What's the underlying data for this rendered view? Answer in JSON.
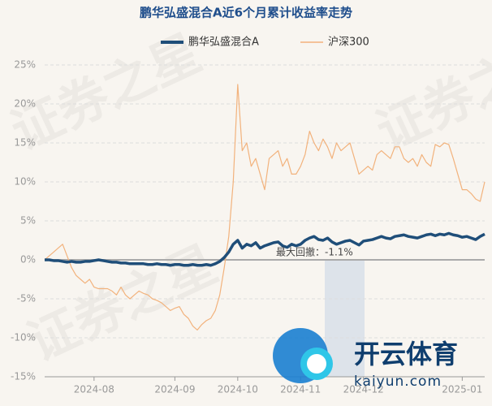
{
  "chart_data": {
    "type": "line",
    "title": "鹏华弘盛混合A近6个月累计收益率走势",
    "watermark": "证券之星",
    "logo": {
      "name": "开云体育",
      "url": "kaiyun.com"
    },
    "annotation": "最大回撤：-1.1%",
    "categories": [
      null,
      null,
      null,
      null,
      null,
      null,
      null,
      null,
      null,
      null,
      null,
      "2024-08",
      null,
      null,
      null,
      null,
      null,
      null,
      null,
      null,
      null,
      null,
      null,
      null,
      null,
      null,
      null,
      null,
      null,
      "2024-09",
      null,
      null,
      null,
      null,
      null,
      null,
      null,
      null,
      null,
      null,
      null,
      null,
      null,
      "2024-10",
      null,
      null,
      null,
      null,
      null,
      null,
      null,
      null,
      null,
      null,
      null,
      null,
      null,
      "2024-11",
      null,
      null,
      null,
      null,
      null,
      null,
      null,
      null,
      null,
      null,
      null,
      null,
      null,
      "2024-12",
      null,
      null,
      null,
      null,
      null,
      null,
      null,
      null,
      null,
      null,
      null,
      null,
      null,
      null,
      null,
      null,
      null,
      null,
      null,
      null,
      null,
      "2025-01",
      null,
      null,
      null,
      null,
      null
    ],
    "series": [
      {
        "name": "鹏华弘盛混合A",
        "color": "#1f4e79",
        "values": [
          0,
          0,
          -0.1,
          -0.1,
          -0.2,
          -0.3,
          -0.2,
          -0.3,
          -0.3,
          -0.2,
          -0.2,
          -0.1,
          0,
          -0.1,
          -0.2,
          -0.3,
          -0.3,
          -0.4,
          -0.4,
          -0.5,
          -0.5,
          -0.5,
          -0.5,
          -0.6,
          -0.6,
          -0.5,
          -0.6,
          -0.6,
          -0.7,
          -0.6,
          -0.6,
          -0.7,
          -0.7,
          -0.6,
          -0.7,
          -0.7,
          -0.6,
          -0.7,
          -0.5,
          -0.2,
          0.3,
          1,
          2,
          2.5,
          1.5,
          2,
          1.8,
          2.2,
          1.5,
          1.8,
          2,
          2.2,
          2.3,
          1.8,
          1.6,
          2,
          1.8,
          2,
          2.5,
          2.8,
          3,
          2.6,
          2.5,
          2.8,
          2.3,
          2,
          2.2,
          2.4,
          2.5,
          2.2,
          1.9,
          2.4,
          2.5,
          2.6,
          2.8,
          3,
          2.8,
          2.7,
          3,
          3.1,
          3.2,
          3,
          2.9,
          2.8,
          3,
          3.2,
          3.3,
          3.1,
          3.3,
          3.2,
          3.4,
          3.2,
          3.1,
          2.9,
          3,
          2.8,
          2.6,
          3,
          3.3
        ]
      },
      {
        "name": "沪深300",
        "color": "#f2b27c",
        "values": [
          0,
          0.5,
          1,
          1.5,
          2,
          0.5,
          -1,
          -2,
          -2.5,
          -3,
          -2.5,
          -3.5,
          -3.7,
          -3.7,
          -3.7,
          -4,
          -4.5,
          -3.5,
          -4.5,
          -5,
          -4.5,
          -4,
          -4.3,
          -4.5,
          -5,
          -5.2,
          -5.5,
          -6,
          -6.5,
          -6.2,
          -6,
          -7,
          -7.5,
          -8.5,
          -9,
          -8.3,
          -7.8,
          -7.5,
          -6.5,
          -4.5,
          -1,
          3,
          10,
          22.5,
          14,
          15,
          12,
          13,
          11,
          9,
          13,
          13.5,
          14,
          12,
          13,
          11,
          11,
          12,
          13.5,
          16.5,
          15,
          14,
          15.5,
          14.5,
          13,
          15,
          14,
          14.5,
          15,
          13,
          11,
          11.5,
          12,
          11.5,
          13.5,
          14,
          13.5,
          13,
          14.5,
          14.5,
          13,
          12.5,
          13,
          12,
          13.5,
          12.5,
          12,
          14.8,
          14.5,
          15,
          14.8,
          13,
          11,
          9,
          9,
          8.5,
          7.8,
          7.5,
          10
        ]
      }
    ],
    "ylim": [
      -15,
      25
    ],
    "yticks": [
      {
        "value": -15,
        "label": "-15%"
      },
      {
        "value": -10,
        "label": "-10%"
      },
      {
        "value": -5,
        "label": "-5%"
      },
      {
        "value": 0,
        "label": "0%"
      },
      {
        "value": 5,
        "label": "5%"
      },
      {
        "value": 10,
        "label": "10%"
      },
      {
        "value": 15,
        "label": "15%"
      },
      {
        "value": 20,
        "label": "20%"
      },
      {
        "value": 25,
        "label": "25%"
      }
    ],
    "grid": true
  }
}
